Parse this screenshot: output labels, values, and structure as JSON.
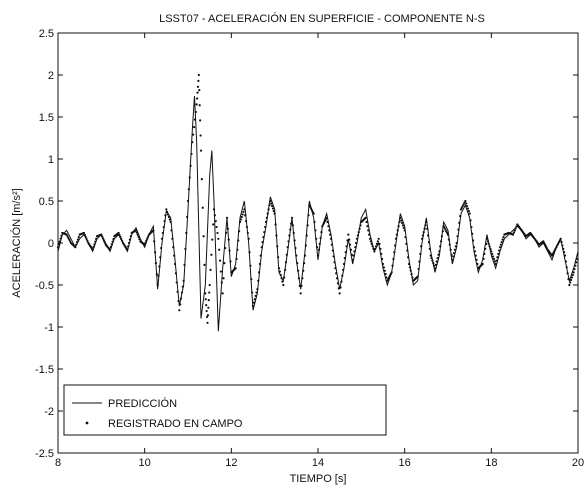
{
  "chart_data": {
    "type": "line",
    "title": "LSST07 - ACELERACIÓN EN SUPERFICIE - COMPONENTE N-S",
    "xlabel": "TIEMPO [s]",
    "ylabel": "ACELERACIÓN [m/s²]",
    "xlim": [
      8,
      20
    ],
    "ylim": [
      -2.5,
      2.5
    ],
    "x_ticks": [
      8,
      10,
      12,
      14,
      16,
      18,
      20
    ],
    "y_ticks": [
      -2.5,
      -2,
      -1.5,
      -1,
      -0.5,
      0,
      0.5,
      1,
      1.5,
      2,
      2.5
    ],
    "grid": false,
    "legend_position": "bottom-left",
    "series": [
      {
        "name": "PREDICCIÓN",
        "style": "solid",
        "color": "#111111",
        "points": [
          [
            8.0,
            -0.1
          ],
          [
            8.1,
            0.1
          ],
          [
            8.2,
            0.15
          ],
          [
            8.3,
            0.05
          ],
          [
            8.4,
            -0.05
          ],
          [
            8.5,
            0.05
          ],
          [
            8.6,
            0.1
          ],
          [
            8.7,
            0.0
          ],
          [
            8.8,
            -0.1
          ],
          [
            8.9,
            0.05
          ],
          [
            9.0,
            0.1
          ],
          [
            9.1,
            0.0
          ],
          [
            9.2,
            -0.1
          ],
          [
            9.3,
            0.05
          ],
          [
            9.4,
            0.1
          ],
          [
            9.5,
            0.0
          ],
          [
            9.6,
            -0.1
          ],
          [
            9.7,
            0.1
          ],
          [
            9.8,
            0.18
          ],
          [
            9.9,
            0.05
          ],
          [
            10.0,
            -0.05
          ],
          [
            10.1,
            0.1
          ],
          [
            10.2,
            0.2
          ],
          [
            10.3,
            -0.55
          ],
          [
            10.4,
            0.0
          ],
          [
            10.5,
            0.38
          ],
          [
            10.6,
            0.3
          ],
          [
            10.7,
            -0.2
          ],
          [
            10.8,
            -0.75
          ],
          [
            10.9,
            -0.5
          ],
          [
            11.0,
            0.4
          ],
          [
            11.1,
            1.35
          ],
          [
            11.15,
            1.75
          ],
          [
            11.2,
            1.2
          ],
          [
            11.3,
            -0.9
          ],
          [
            11.4,
            -0.5
          ],
          [
            11.5,
            0.8
          ],
          [
            11.55,
            1.1
          ],
          [
            11.6,
            0.5
          ],
          [
            11.7,
            -1.05
          ],
          [
            11.8,
            -0.3
          ],
          [
            11.9,
            0.3
          ],
          [
            12.0,
            -0.4
          ],
          [
            12.1,
            -0.25
          ],
          [
            12.2,
            0.3
          ],
          [
            12.3,
            0.5
          ],
          [
            12.4,
            0.0
          ],
          [
            12.5,
            -0.8
          ],
          [
            12.6,
            -0.6
          ],
          [
            12.7,
            -0.1
          ],
          [
            12.8,
            0.2
          ],
          [
            12.9,
            0.55
          ],
          [
            13.0,
            0.4
          ],
          [
            13.1,
            -0.35
          ],
          [
            13.2,
            -0.45
          ],
          [
            13.3,
            -0.1
          ],
          [
            13.4,
            0.3
          ],
          [
            13.5,
            -0.2
          ],
          [
            13.6,
            -0.55
          ],
          [
            13.7,
            -0.1
          ],
          [
            13.8,
            0.5
          ],
          [
            13.9,
            0.3
          ],
          [
            14.0,
            -0.2
          ],
          [
            14.1,
            0.2
          ],
          [
            14.2,
            0.35
          ],
          [
            14.3,
            0.1
          ],
          [
            14.4,
            -0.25
          ],
          [
            14.5,
            -0.55
          ],
          [
            14.6,
            -0.3
          ],
          [
            14.7,
            0.05
          ],
          [
            14.8,
            -0.25
          ],
          [
            14.9,
            0.0
          ],
          [
            15.0,
            0.3
          ],
          [
            15.1,
            0.4
          ],
          [
            15.2,
            0.1
          ],
          [
            15.3,
            -0.1
          ],
          [
            15.4,
            0.0
          ],
          [
            15.5,
            -0.3
          ],
          [
            15.6,
            -0.5
          ],
          [
            15.7,
            -0.35
          ],
          [
            15.8,
            0.0
          ],
          [
            15.9,
            0.35
          ],
          [
            16.0,
            0.2
          ],
          [
            16.1,
            -0.2
          ],
          [
            16.2,
            -0.5
          ],
          [
            16.3,
            -0.45
          ],
          [
            16.4,
            0.0
          ],
          [
            16.5,
            0.3
          ],
          [
            16.6,
            -0.1
          ],
          [
            16.7,
            -0.35
          ],
          [
            16.8,
            -0.15
          ],
          [
            16.9,
            0.25
          ],
          [
            17.0,
            0.15
          ],
          [
            17.1,
            -0.25
          ],
          [
            17.2,
            -0.05
          ],
          [
            17.3,
            0.35
          ],
          [
            17.4,
            0.45
          ],
          [
            17.5,
            0.3
          ],
          [
            17.6,
            -0.1
          ],
          [
            17.7,
            -0.35
          ],
          [
            17.8,
            -0.2
          ],
          [
            17.9,
            0.1
          ],
          [
            18.0,
            -0.15
          ],
          [
            18.1,
            -0.3
          ],
          [
            18.2,
            -0.1
          ],
          [
            18.3,
            0.05
          ],
          [
            18.4,
            0.1
          ],
          [
            18.5,
            0.15
          ],
          [
            18.6,
            0.2
          ],
          [
            18.7,
            0.15
          ],
          [
            18.8,
            0.05
          ],
          [
            18.9,
            0.1
          ],
          [
            19.0,
            0.05
          ],
          [
            19.1,
            -0.05
          ],
          [
            19.2,
            0.0
          ],
          [
            19.3,
            -0.1
          ],
          [
            19.4,
            -0.2
          ],
          [
            19.5,
            -0.05
          ],
          [
            19.6,
            0.05
          ],
          [
            19.7,
            -0.2
          ],
          [
            19.8,
            -0.45
          ],
          [
            19.9,
            -0.3
          ],
          [
            20.0,
            -0.1
          ]
        ]
      },
      {
        "name": "REGISTRADO EN CAMPO",
        "style": "dotted",
        "color": "#111111",
        "points": [
          [
            8.0,
            -0.05
          ],
          [
            8.1,
            0.12
          ],
          [
            8.2,
            0.1
          ],
          [
            8.3,
            0.0
          ],
          [
            8.4,
            -0.05
          ],
          [
            8.5,
            0.1
          ],
          [
            8.6,
            0.12
          ],
          [
            8.7,
            0.0
          ],
          [
            8.8,
            -0.08
          ],
          [
            8.9,
            0.08
          ],
          [
            9.0,
            0.1
          ],
          [
            9.1,
            -0.02
          ],
          [
            9.2,
            -0.08
          ],
          [
            9.3,
            0.08
          ],
          [
            9.4,
            0.12
          ],
          [
            9.5,
            0.0
          ],
          [
            9.6,
            -0.08
          ],
          [
            9.7,
            0.12
          ],
          [
            9.8,
            0.15
          ],
          [
            9.9,
            0.02
          ],
          [
            10.0,
            -0.02
          ],
          [
            10.1,
            0.1
          ],
          [
            10.2,
            0.15
          ],
          [
            10.3,
            -0.5
          ],
          [
            10.4,
            0.05
          ],
          [
            10.5,
            0.4
          ],
          [
            10.6,
            0.25
          ],
          [
            10.7,
            -0.25
          ],
          [
            10.8,
            -0.8
          ],
          [
            10.9,
            -0.45
          ],
          [
            11.0,
            0.5
          ],
          [
            11.1,
            1.2
          ],
          [
            11.2,
            1.65
          ],
          [
            11.25,
            2.0
          ],
          [
            11.3,
            1.1
          ],
          [
            11.4,
            -0.6
          ],
          [
            11.45,
            -0.95
          ],
          [
            11.5,
            -0.5
          ],
          [
            11.6,
            0.4
          ],
          [
            11.7,
            0.05
          ],
          [
            11.8,
            -0.6
          ],
          [
            11.9,
            0.3
          ],
          [
            12.0,
            -0.35
          ],
          [
            12.1,
            -0.3
          ],
          [
            12.2,
            0.25
          ],
          [
            12.3,
            0.4
          ],
          [
            12.4,
            0.05
          ],
          [
            12.5,
            -0.75
          ],
          [
            12.6,
            -0.55
          ],
          [
            12.7,
            -0.05
          ],
          [
            12.8,
            0.25
          ],
          [
            12.9,
            0.5
          ],
          [
            13.0,
            0.35
          ],
          [
            13.1,
            -0.3
          ],
          [
            13.2,
            -0.5
          ],
          [
            13.3,
            -0.05
          ],
          [
            13.4,
            0.3
          ],
          [
            13.5,
            -0.15
          ],
          [
            13.6,
            -0.6
          ],
          [
            13.7,
            -0.15
          ],
          [
            13.8,
            0.45
          ],
          [
            13.9,
            0.35
          ],
          [
            14.0,
            -0.15
          ],
          [
            14.1,
            0.2
          ],
          [
            14.2,
            0.3
          ],
          [
            14.3,
            0.05
          ],
          [
            14.4,
            -0.3
          ],
          [
            14.5,
            -0.6
          ],
          [
            14.6,
            -0.25
          ],
          [
            14.7,
            0.1
          ],
          [
            14.8,
            -0.2
          ],
          [
            14.9,
            0.05
          ],
          [
            15.0,
            0.25
          ],
          [
            15.1,
            0.3
          ],
          [
            15.2,
            0.05
          ],
          [
            15.3,
            -0.1
          ],
          [
            15.4,
            0.05
          ],
          [
            15.5,
            -0.25
          ],
          [
            15.6,
            -0.45
          ],
          [
            15.7,
            -0.35
          ],
          [
            15.8,
            0.05
          ],
          [
            15.9,
            0.3
          ],
          [
            16.0,
            0.15
          ],
          [
            16.1,
            -0.25
          ],
          [
            16.2,
            -0.45
          ],
          [
            16.3,
            -0.4
          ],
          [
            16.4,
            0.05
          ],
          [
            16.5,
            0.25
          ],
          [
            16.6,
            -0.15
          ],
          [
            16.7,
            -0.3
          ],
          [
            16.8,
            -0.1
          ],
          [
            16.9,
            0.2
          ],
          [
            17.0,
            0.1
          ],
          [
            17.1,
            -0.2
          ],
          [
            17.2,
            0.0
          ],
          [
            17.3,
            0.4
          ],
          [
            17.4,
            0.5
          ],
          [
            17.5,
            0.35
          ],
          [
            17.6,
            -0.05
          ],
          [
            17.7,
            -0.3
          ],
          [
            17.8,
            -0.25
          ],
          [
            17.9,
            0.05
          ],
          [
            18.0,
            -0.1
          ],
          [
            18.1,
            -0.25
          ],
          [
            18.2,
            -0.05
          ],
          [
            18.3,
            0.1
          ],
          [
            18.4,
            0.12
          ],
          [
            18.5,
            0.1
          ],
          [
            18.6,
            0.22
          ],
          [
            18.7,
            0.15
          ],
          [
            18.8,
            0.08
          ],
          [
            18.9,
            0.12
          ],
          [
            19.0,
            0.05
          ],
          [
            19.1,
            -0.02
          ],
          [
            19.2,
            0.02
          ],
          [
            19.3,
            -0.08
          ],
          [
            19.4,
            -0.15
          ],
          [
            19.5,
            -0.05
          ],
          [
            19.6,
            0.05
          ],
          [
            19.7,
            -0.15
          ],
          [
            19.8,
            -0.5
          ],
          [
            19.9,
            -0.35
          ],
          [
            20.0,
            -0.15
          ]
        ]
      }
    ]
  }
}
